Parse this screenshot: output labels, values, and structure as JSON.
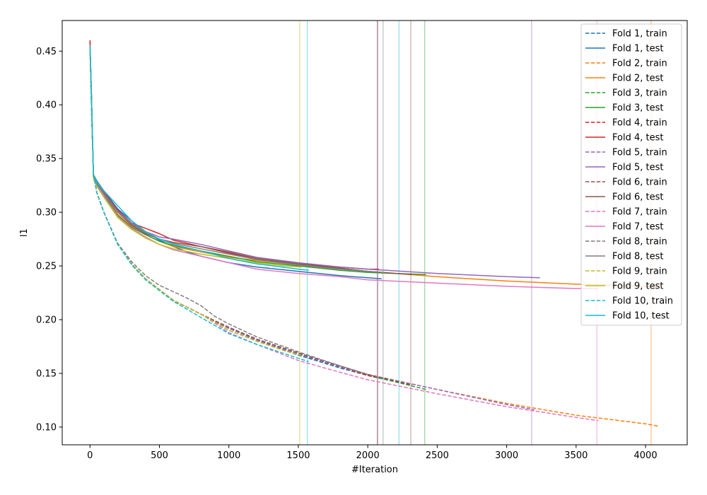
{
  "chart_data": {
    "type": "line",
    "title": "",
    "xlabel": "#Iteration",
    "ylabel": "l1",
    "xlim": [
      -200,
      4300
    ],
    "ylim": [
      0.0835,
      0.4785
    ],
    "xticks": [
      0,
      500,
      1000,
      1500,
      2000,
      2500,
      3000,
      3500,
      4000
    ],
    "xtick_labels": [
      "0",
      "500",
      "1000",
      "1500",
      "2000",
      "2500",
      "3000",
      "3500",
      "4000"
    ],
    "yticks": [
      0.1,
      0.15,
      0.2,
      0.25,
      0.3,
      0.35,
      0.4,
      0.45
    ],
    "ytick_labels": [
      "0.10",
      "0.15",
      "0.20",
      "0.25",
      "0.30",
      "0.35",
      "0.40",
      "0.45"
    ],
    "grid": false,
    "legend_position": "top-right",
    "vertical_lines": [
      {
        "x": 2070,
        "color": "#1f77b4"
      },
      {
        "x": 4040,
        "color": "#ff7f0e"
      },
      {
        "x": 2410,
        "color": "#2ca02c"
      },
      {
        "x": 2070,
        "color": "#d62728"
      },
      {
        "x": 3180,
        "color": "#9467bd"
      },
      {
        "x": 2310,
        "color": "#8c564b"
      },
      {
        "x": 3650,
        "color": "#e377c2"
      },
      {
        "x": 2110,
        "color": "#7f7f7f"
      },
      {
        "x": 1510,
        "color": "#bcbd22"
      },
      {
        "x": 1565,
        "color": "#17becf"
      },
      {
        "x": 2225,
        "color": "#17becf"
      }
    ],
    "series": [
      {
        "name": "Fold 1, train",
        "color": "#1f77b4",
        "style": "dashed",
        "x": [
          0,
          10,
          25,
          50,
          100,
          200,
          300,
          400,
          500,
          600,
          800,
          1000,
          1200,
          1500,
          1800,
          2000,
          2100
        ],
        "y": [
          0.455,
          0.4,
          0.335,
          0.318,
          0.3,
          0.27,
          0.252,
          0.238,
          0.228,
          0.218,
          0.205,
          0.19,
          0.18,
          0.167,
          0.155,
          0.148,
          0.145
        ]
      },
      {
        "name": "Fold 1, test",
        "color": "#1f77b4",
        "style": "solid",
        "x": [
          0,
          10,
          25,
          50,
          100,
          200,
          300,
          400,
          500,
          600,
          700,
          800,
          1000,
          1200,
          1500,
          1800,
          2000,
          2100
        ],
        "y": [
          0.455,
          0.41,
          0.335,
          0.329,
          0.32,
          0.303,
          0.292,
          0.282,
          0.274,
          0.268,
          0.263,
          0.259,
          0.253,
          0.249,
          0.245,
          0.241,
          0.239,
          0.238
        ]
      },
      {
        "name": "Fold 2, train",
        "color": "#ff7f0e",
        "style": "dashed",
        "x": [
          0,
          10,
          25,
          50,
          100,
          200,
          300,
          400,
          500,
          600,
          800,
          1000,
          1200,
          1500,
          1800,
          2000,
          2500,
          3000,
          3500,
          4000,
          4090
        ],
        "y": [
          0.455,
          0.4,
          0.335,
          0.318,
          0.3,
          0.27,
          0.252,
          0.238,
          0.228,
          0.218,
          0.205,
          0.192,
          0.181,
          0.168,
          0.156,
          0.149,
          0.135,
          0.122,
          0.111,
          0.103,
          0.101
        ]
      },
      {
        "name": "Fold 2, test",
        "color": "#ff7f0e",
        "style": "solid",
        "x": [
          0,
          10,
          25,
          50,
          100,
          200,
          300,
          400,
          500,
          600,
          800,
          1000,
          1500,
          2000,
          2500,
          3000,
          3500,
          4000,
          4090
        ],
        "y": [
          0.455,
          0.41,
          0.333,
          0.327,
          0.317,
          0.298,
          0.287,
          0.279,
          0.273,
          0.268,
          0.263,
          0.258,
          0.251,
          0.245,
          0.24,
          0.236,
          0.233,
          0.231,
          0.23
        ]
      },
      {
        "name": "Fold 3, train",
        "color": "#2ca02c",
        "style": "dashed",
        "x": [
          0,
          10,
          25,
          50,
          100,
          200,
          300,
          400,
          500,
          600,
          800,
          1000,
          1200,
          1500,
          1800,
          2000,
          2200,
          2420
        ],
        "y": [
          0.455,
          0.4,
          0.335,
          0.318,
          0.3,
          0.27,
          0.252,
          0.238,
          0.228,
          0.218,
          0.205,
          0.192,
          0.181,
          0.168,
          0.156,
          0.148,
          0.142,
          0.135
        ]
      },
      {
        "name": "Fold 3, test",
        "color": "#2ca02c",
        "style": "solid",
        "x": [
          0,
          10,
          25,
          50,
          100,
          200,
          300,
          400,
          500,
          600,
          800,
          1000,
          1200,
          1500,
          1800,
          2000,
          2200,
          2420
        ],
        "y": [
          0.455,
          0.41,
          0.333,
          0.326,
          0.316,
          0.297,
          0.286,
          0.279,
          0.273,
          0.269,
          0.264,
          0.259,
          0.254,
          0.25,
          0.246,
          0.244,
          0.243,
          0.242
        ]
      },
      {
        "name": "Fold 4, train",
        "color": "#d62728",
        "style": "dashed",
        "x": [
          0,
          10,
          25,
          50,
          100,
          200,
          300,
          400,
          500,
          600,
          800,
          1000,
          1200,
          1500,
          1800,
          2000,
          2080
        ],
        "y": [
          0.46,
          0.4,
          0.335,
          0.318,
          0.3,
          0.27,
          0.252,
          0.238,
          0.228,
          0.218,
          0.205,
          0.192,
          0.181,
          0.168,
          0.156,
          0.148,
          0.146
        ]
      },
      {
        "name": "Fold 4, test",
        "color": "#d62728",
        "style": "solid",
        "x": [
          0,
          10,
          25,
          50,
          100,
          200,
          300,
          400,
          500,
          600,
          800,
          1000,
          1200,
          1500,
          1800,
          2000,
          2080
        ],
        "y": [
          0.46,
          0.41,
          0.333,
          0.328,
          0.319,
          0.302,
          0.29,
          0.285,
          0.28,
          0.274,
          0.268,
          0.262,
          0.257,
          0.252,
          0.249,
          0.247,
          0.247
        ]
      },
      {
        "name": "Fold 5, train",
        "color": "#9467bd",
        "style": "dashed",
        "x": [
          0,
          10,
          25,
          50,
          100,
          200,
          300,
          400,
          500,
          600,
          800,
          1000,
          1200,
          1500,
          1800,
          2000,
          2500,
          3000,
          3200
        ],
        "y": [
          0.455,
          0.4,
          0.335,
          0.318,
          0.3,
          0.27,
          0.252,
          0.238,
          0.228,
          0.218,
          0.205,
          0.192,
          0.181,
          0.168,
          0.156,
          0.149,
          0.135,
          0.121,
          0.116
        ]
      },
      {
        "name": "Fold 5, test",
        "color": "#9467bd",
        "style": "solid",
        "x": [
          0,
          10,
          25,
          50,
          100,
          200,
          300,
          400,
          500,
          600,
          800,
          1000,
          1200,
          1500,
          1800,
          2000,
          2500,
          3000,
          3240
        ],
        "y": [
          0.455,
          0.41,
          0.334,
          0.327,
          0.318,
          0.301,
          0.29,
          0.282,
          0.277,
          0.275,
          0.27,
          0.264,
          0.258,
          0.253,
          0.249,
          0.247,
          0.243,
          0.24,
          0.239
        ]
      },
      {
        "name": "Fold 6, train",
        "color": "#8c564b",
        "style": "dashed",
        "x": [
          0,
          10,
          25,
          50,
          100,
          200,
          300,
          400,
          500,
          600,
          800,
          1000,
          1200,
          1500,
          1800,
          2000,
          2320
        ],
        "y": [
          0.455,
          0.4,
          0.335,
          0.318,
          0.3,
          0.27,
          0.252,
          0.238,
          0.228,
          0.218,
          0.205,
          0.193,
          0.182,
          0.169,
          0.157,
          0.149,
          0.139
        ]
      },
      {
        "name": "Fold 6, test",
        "color": "#8c564b",
        "style": "solid",
        "x": [
          0,
          10,
          25,
          50,
          100,
          200,
          300,
          400,
          500,
          600,
          800,
          1000,
          1200,
          1500,
          1800,
          2000,
          2320
        ],
        "y": [
          0.455,
          0.41,
          0.333,
          0.326,
          0.317,
          0.3,
          0.288,
          0.28,
          0.275,
          0.272,
          0.268,
          0.263,
          0.257,
          0.252,
          0.248,
          0.245,
          0.242
        ]
      },
      {
        "name": "Fold 7, train",
        "color": "#e377c2",
        "style": "dashed",
        "x": [
          0,
          10,
          25,
          50,
          100,
          200,
          300,
          400,
          500,
          600,
          800,
          1000,
          1200,
          1500,
          1800,
          2000,
          2500,
          3000,
          3500,
          3660
        ],
        "y": [
          0.455,
          0.4,
          0.335,
          0.318,
          0.3,
          0.27,
          0.252,
          0.238,
          0.228,
          0.218,
          0.205,
          0.188,
          0.177,
          0.162,
          0.151,
          0.144,
          0.131,
          0.119,
          0.109,
          0.106
        ]
      },
      {
        "name": "Fold 7, test",
        "color": "#e377c2",
        "style": "solid",
        "x": [
          0,
          10,
          25,
          50,
          100,
          200,
          300,
          400,
          500,
          600,
          800,
          1000,
          1200,
          1500,
          1800,
          2000,
          2500,
          3000,
          3500,
          3660
        ],
        "y": [
          0.455,
          0.41,
          0.332,
          0.325,
          0.315,
          0.296,
          0.285,
          0.277,
          0.27,
          0.265,
          0.259,
          0.253,
          0.247,
          0.243,
          0.24,
          0.237,
          0.234,
          0.231,
          0.229,
          0.229
        ]
      },
      {
        "name": "Fold 8, train",
        "color": "#7f7f7f",
        "style": "dashed",
        "x": [
          0,
          10,
          25,
          50,
          100,
          200,
          300,
          400,
          500,
          600,
          700,
          800,
          900,
          1000,
          1200,
          1500,
          1800,
          2000,
          2120
        ],
        "y": [
          0.455,
          0.4,
          0.335,
          0.318,
          0.3,
          0.271,
          0.254,
          0.241,
          0.232,
          0.226,
          0.22,
          0.213,
          0.203,
          0.196,
          0.184,
          0.17,
          0.157,
          0.149,
          0.145
        ]
      },
      {
        "name": "Fold 8, test",
        "color": "#7f7f7f",
        "style": "solid",
        "x": [
          0,
          10,
          25,
          50,
          100,
          200,
          300,
          400,
          500,
          600,
          800,
          1000,
          1200,
          1500,
          1800,
          2000,
          2120
        ],
        "y": [
          0.455,
          0.41,
          0.333,
          0.326,
          0.317,
          0.3,
          0.289,
          0.281,
          0.275,
          0.271,
          0.266,
          0.261,
          0.256,
          0.251,
          0.247,
          0.245,
          0.244
        ]
      },
      {
        "name": "Fold 9, train",
        "color": "#bcbd22",
        "style": "dashed",
        "x": [
          0,
          10,
          25,
          50,
          100,
          200,
          300,
          400,
          500,
          600,
          800,
          1000,
          1200,
          1400,
          1520
        ],
        "y": [
          0.455,
          0.4,
          0.335,
          0.318,
          0.3,
          0.27,
          0.252,
          0.238,
          0.228,
          0.218,
          0.205,
          0.19,
          0.18,
          0.171,
          0.167
        ]
      },
      {
        "name": "Fold 9, test",
        "color": "#bcbd22",
        "style": "solid",
        "x": [
          0,
          10,
          25,
          50,
          100,
          200,
          300,
          400,
          500,
          600,
          800,
          1000,
          1200,
          1400,
          1520
        ],
        "y": [
          0.455,
          0.41,
          0.331,
          0.324,
          0.314,
          0.295,
          0.284,
          0.276,
          0.27,
          0.266,
          0.261,
          0.257,
          0.253,
          0.25,
          0.249
        ]
      },
      {
        "name": "Fold 10, train",
        "color": "#17becf",
        "style": "dashed",
        "x": [
          0,
          10,
          25,
          50,
          100,
          200,
          300,
          400,
          500,
          600,
          800,
          1000,
          1200,
          1500,
          1575
        ],
        "y": [
          0.455,
          0.4,
          0.335,
          0.318,
          0.3,
          0.27,
          0.251,
          0.237,
          0.227,
          0.217,
          0.202,
          0.187,
          0.177,
          0.164,
          0.161
        ]
      },
      {
        "name": "Fold 10, test",
        "color": "#17becf",
        "style": "solid",
        "x": [
          0,
          10,
          25,
          50,
          100,
          200,
          300,
          400,
          500,
          600,
          800,
          1000,
          1200,
          1500,
          1575
        ],
        "y": [
          0.455,
          0.41,
          0.334,
          0.328,
          0.32,
          0.306,
          0.292,
          0.282,
          0.275,
          0.27,
          0.264,
          0.257,
          0.252,
          0.247,
          0.246
        ]
      }
    ]
  }
}
